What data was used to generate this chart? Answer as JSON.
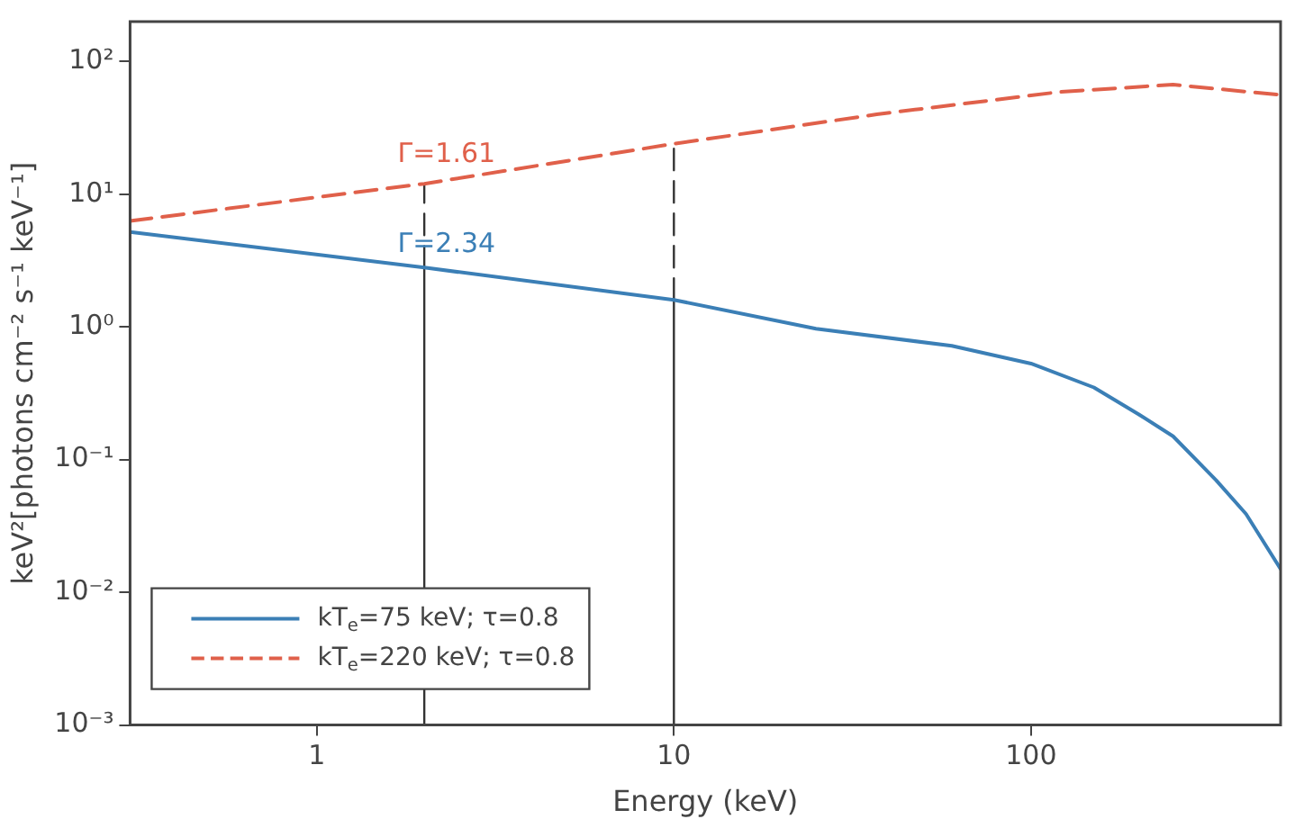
{
  "chart_data": {
    "type": "line",
    "xlabel": "Energy (keV)",
    "ylabel": "keV²[photons cm⁻² s⁻¹ keV⁻¹]",
    "log": "xy",
    "grid": false,
    "legend": "bottom left",
    "marker": "none",
    "xlim": [
      0.3,
      500
    ],
    "xticks": [
      1,
      10,
      100
    ],
    "ylim": [
      0.001,
      200
    ],
    "yticks": [
      {
        "value": 0.001,
        "label": "10⁻³"
      },
      {
        "value": 0.01,
        "label": "10⁻²"
      },
      {
        "value": 0.1,
        "label": "10⁻¹"
      },
      {
        "value": 1,
        "label": "10⁰"
      },
      {
        "value": 10,
        "label": "10¹"
      },
      {
        "value": 100,
        "label": "10²"
      }
    ],
    "series": [
      {
        "name": "kT$_{e}$=75 keV; τ=0.8",
        "color": "#3b7fb6",
        "line_style": "solid",
        "x": [
          0.3,
          2,
          10,
          25,
          60,
          100,
          150,
          200,
          250,
          330,
          400,
          500
        ],
        "values": [
          5.2,
          2.8,
          1.6,
          0.97,
          0.72,
          0.53,
          0.35,
          0.22,
          0.15,
          0.07,
          0.039,
          0.015
        ]
      },
      {
        "name": "kT$_{e}$=220 keV; τ=0.8",
        "color": "#e0604a",
        "line_style": "dashed",
        "x": [
          0.3,
          2,
          10,
          37,
          120,
          250,
          500
        ],
        "values": [
          6.3,
          12,
          24,
          40,
          59,
          67,
          56
        ]
      },
      {
        "color": "#333333",
        "line_style": "solid",
        "x": [
          2,
          2
        ],
        "values": [
          0.001,
          2.8
        ]
      },
      {
        "color": "#333333",
        "line_style": "dashed",
        "x": [
          2,
          2
        ],
        "values": [
          2.8,
          12
        ]
      },
      {
        "color": "#333333",
        "line_style": "solid",
        "x": [
          10,
          10
        ],
        "values": [
          0.001,
          1.6
        ]
      },
      {
        "color": "#333333",
        "line_style": "dashed",
        "x": [
          10,
          10
        ],
        "values": [
          1.6,
          24
        ]
      }
    ],
    "annotations": [
      "Γ=2.34",
      "Γ=1.61"
    ]
  }
}
